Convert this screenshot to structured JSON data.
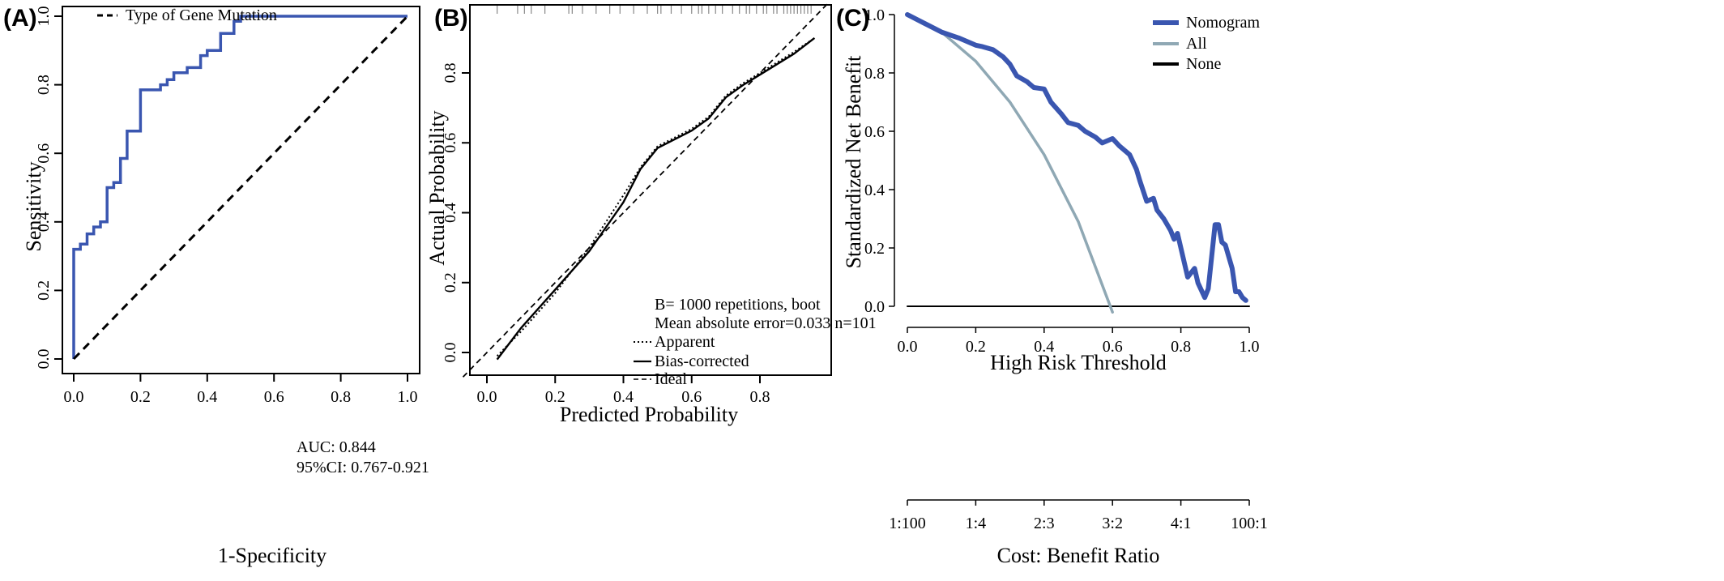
{
  "chart_data": [
    {
      "panel_label": "(A)",
      "type": "line",
      "xlabel": "1-Specificity",
      "ylabel": "Sensitivity",
      "xlim": [
        0.0,
        1.0
      ],
      "ylim": [
        0.0,
        1.0
      ],
      "xticks": [
        "0.0",
        "0.2",
        "0.4",
        "0.6",
        "0.8",
        "1.0"
      ],
      "yticks": [
        "0.0",
        "0.2",
        "0.4",
        "0.6",
        "0.8",
        "1.0"
      ],
      "legend": {
        "position": "top-left",
        "entries": [
          "Type of Gene Mutation"
        ]
      },
      "annotations": [
        "AUC: 0.844",
        "95%CI: 0.767-0.921"
      ],
      "series": [
        {
          "name": "ROC",
          "color": "#3a56b0",
          "points": [
            [
              0,
              0
            ],
            [
              0,
              0.32
            ],
            [
              0.02,
              0.32
            ],
            [
              0.02,
              0.335
            ],
            [
              0.04,
              0.335
            ],
            [
              0.04,
              0.365
            ],
            [
              0.06,
              0.365
            ],
            [
              0.06,
              0.385
            ],
            [
              0.08,
              0.385
            ],
            [
              0.08,
              0.4
            ],
            [
              0.1,
              0.4
            ],
            [
              0.1,
              0.5
            ],
            [
              0.12,
              0.5
            ],
            [
              0.12,
              0.515
            ],
            [
              0.14,
              0.515
            ],
            [
              0.14,
              0.585
            ],
            [
              0.16,
              0.585
            ],
            [
              0.16,
              0.665
            ],
            [
              0.2,
              0.665
            ],
            [
              0.2,
              0.785
            ],
            [
              0.26,
              0.785
            ],
            [
              0.26,
              0.8
            ],
            [
              0.28,
              0.8
            ],
            [
              0.28,
              0.815
            ],
            [
              0.3,
              0.815
            ],
            [
              0.3,
              0.835
            ],
            [
              0.34,
              0.835
            ],
            [
              0.34,
              0.85
            ],
            [
              0.38,
              0.85
            ],
            [
              0.38,
              0.885
            ],
            [
              0.4,
              0.885
            ],
            [
              0.4,
              0.9
            ],
            [
              0.44,
              0.9
            ],
            [
              0.44,
              0.95
            ],
            [
              0.48,
              0.95
            ],
            [
              0.48,
              0.985
            ],
            [
              0.5,
              0.985
            ],
            [
              0.5,
              1.0
            ],
            [
              1.0,
              1.0
            ]
          ]
        },
        {
          "name": "Reference",
          "color": "#000000",
          "dashed": true,
          "points": [
            [
              0,
              0
            ],
            [
              1,
              1
            ]
          ]
        }
      ]
    },
    {
      "panel_label": "(B)",
      "type": "line",
      "xlabel": "Predicted Probability",
      "ylabel": "Actual Probability",
      "xlim": [
        -0.07,
        1.0
      ],
      "ylim": [
        -0.05,
        0.98
      ],
      "xticks": [
        "0.0",
        "0.2",
        "0.4",
        "0.6",
        "0.8"
      ],
      "yticks": [
        "0.0",
        "0.2",
        "0.4",
        "0.6",
        "0.8"
      ],
      "legend": {
        "position": "bottom-right",
        "header": [
          "B= 1000 repetitions, boot",
          "Mean absolute error=0.033 n=101"
        ],
        "entries": [
          "Apparent",
          "Bias-corrected",
          "Ideal"
        ]
      },
      "rug": [
        0.03,
        0.09,
        0.11,
        0.13,
        0.17,
        0.24,
        0.25,
        0.28,
        0.32,
        0.36,
        0.39,
        0.43,
        0.47,
        0.5,
        0.51,
        0.54,
        0.57,
        0.6,
        0.62,
        0.63,
        0.65,
        0.67,
        0.69,
        0.72,
        0.74,
        0.76,
        0.77,
        0.79,
        0.81,
        0.82,
        0.84,
        0.85,
        0.87,
        0.88,
        0.89,
        0.9,
        0.91,
        0.92,
        0.93,
        0.94,
        0.95
      ],
      "series": [
        {
          "name": "Apparent",
          "style": "dotted",
          "points": [
            [
              0.03,
              -0.01
            ],
            [
              0.1,
              0.06
            ],
            [
              0.2,
              0.17
            ],
            [
              0.3,
              0.3
            ],
            [
              0.4,
              0.45
            ],
            [
              0.45,
              0.53
            ],
            [
              0.5,
              0.59
            ],
            [
              0.55,
              0.615
            ],
            [
              0.6,
              0.64
            ],
            [
              0.65,
              0.675
            ],
            [
              0.7,
              0.735
            ],
            [
              0.75,
              0.77
            ],
            [
              0.8,
              0.8
            ],
            [
              0.9,
              0.86
            ],
            [
              0.96,
              0.9
            ]
          ]
        },
        {
          "name": "Bias-corrected",
          "style": "solid",
          "points": [
            [
              0.03,
              -0.02
            ],
            [
              0.1,
              0.07
            ],
            [
              0.2,
              0.18
            ],
            [
              0.3,
              0.29
            ],
            [
              0.4,
              0.43
            ],
            [
              0.45,
              0.525
            ],
            [
              0.5,
              0.585
            ],
            [
              0.55,
              0.61
            ],
            [
              0.6,
              0.635
            ],
            [
              0.65,
              0.67
            ],
            [
              0.7,
              0.73
            ],
            [
              0.75,
              0.765
            ],
            [
              0.8,
              0.795
            ],
            [
              0.9,
              0.855
            ],
            [
              0.96,
              0.9
            ]
          ]
        },
        {
          "name": "Ideal",
          "style": "dashed",
          "points": [
            [
              -0.07,
              -0.07
            ],
            [
              1.0,
              1.0
            ]
          ]
        }
      ]
    },
    {
      "panel_label": "(C)",
      "type": "line",
      "xlabel": "High Risk Threshold",
      "ylabel": "Standardized Net Benefit",
      "xlim": [
        0.0,
        1.0
      ],
      "ylim": [
        0.0,
        1.0
      ],
      "xticks": [
        "0.0",
        "0.2",
        "0.4",
        "0.6",
        "0.8",
        "1.0"
      ],
      "yticks": [
        "0.0",
        "0.2",
        "0.4",
        "0.6",
        "0.8",
        "1.0"
      ],
      "secondary_axis": {
        "label": "Cost: Benefit Ratio",
        "ticks": [
          "1:100",
          "1:4",
          "2:3",
          "3:2",
          "4:1",
          "100:1"
        ]
      },
      "legend": {
        "position": "top-right",
        "entries": [
          "Nomogram",
          "All",
          "None"
        ]
      },
      "series": [
        {
          "name": "Nomogram",
          "color": "#3a56b0",
          "points": [
            [
              0.0,
              1.0
            ],
            [
              0.05,
              0.97
            ],
            [
              0.1,
              0.94
            ],
            [
              0.15,
              0.92
            ],
            [
              0.2,
              0.895
            ],
            [
              0.22,
              0.89
            ],
            [
              0.25,
              0.88
            ],
            [
              0.28,
              0.855
            ],
            [
              0.3,
              0.83
            ],
            [
              0.32,
              0.79
            ],
            [
              0.35,
              0.77
            ],
            [
              0.37,
              0.75
            ],
            [
              0.4,
              0.745
            ],
            [
              0.42,
              0.7
            ],
            [
              0.45,
              0.66
            ],
            [
              0.47,
              0.63
            ],
            [
              0.5,
              0.62
            ],
            [
              0.52,
              0.6
            ],
            [
              0.55,
              0.58
            ],
            [
              0.57,
              0.56
            ],
            [
              0.6,
              0.575
            ],
            [
              0.62,
              0.55
            ],
            [
              0.65,
              0.52
            ],
            [
              0.67,
              0.47
            ],
            [
              0.68,
              0.43
            ],
            [
              0.7,
              0.36
            ],
            [
              0.72,
              0.37
            ],
            [
              0.73,
              0.33
            ],
            [
              0.75,
              0.3
            ],
            [
              0.77,
              0.26
            ],
            [
              0.78,
              0.23
            ],
            [
              0.79,
              0.25
            ],
            [
              0.8,
              0.2
            ],
            [
              0.81,
              0.15
            ],
            [
              0.82,
              0.1
            ],
            [
              0.84,
              0.13
            ],
            [
              0.85,
              0.08
            ],
            [
              0.87,
              0.03
            ],
            [
              0.88,
              0.06
            ],
            [
              0.9,
              0.28
            ],
            [
              0.91,
              0.28
            ],
            [
              0.92,
              0.22
            ],
            [
              0.93,
              0.21
            ],
            [
              0.95,
              0.13
            ],
            [
              0.96,
              0.05
            ],
            [
              0.97,
              0.05
            ],
            [
              0.98,
              0.03
            ],
            [
              0.99,
              0.02
            ]
          ]
        },
        {
          "name": "All",
          "color": "#8fa8b4",
          "points": [
            [
              0.0,
              1.0
            ],
            [
              0.1,
              0.94
            ],
            [
              0.2,
              0.84
            ],
            [
              0.3,
              0.7
            ],
            [
              0.4,
              0.52
            ],
            [
              0.5,
              0.29
            ],
            [
              0.6,
              -0.02
            ]
          ]
        },
        {
          "name": "None",
          "color": "#000000",
          "points": [
            [
              0.0,
              0.0
            ],
            [
              1.0,
              0.0
            ]
          ]
        }
      ]
    }
  ]
}
